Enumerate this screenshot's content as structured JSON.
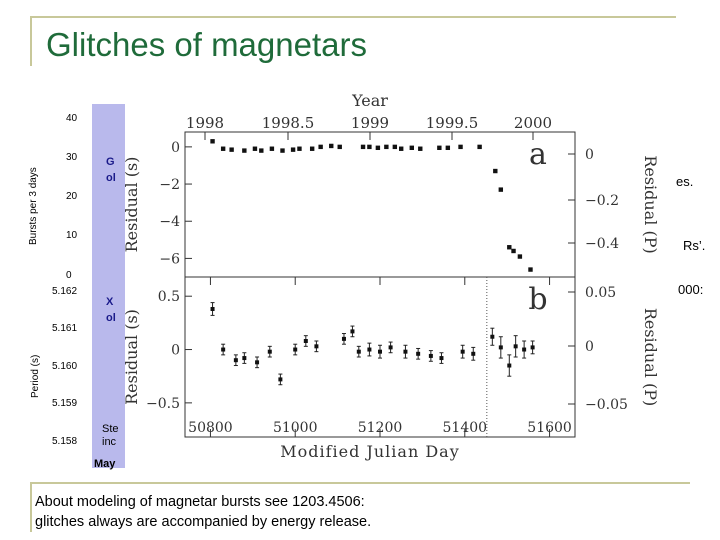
{
  "slide": {
    "title": "Glitches of magnetars",
    "caption_line1": "About modeling of magnetar bursts see 1203.4506:",
    "caption_line2": "glitches always are accompanied by energy release.",
    "right_fragments": [
      "es.",
      "Rs’.",
      "000:"
    ]
  },
  "background_plot": {
    "top_ylabel": "Bursts per 3 days",
    "top_ticks": [
      "40",
      "30",
      "20",
      "10",
      "0"
    ],
    "bottom_ylabel": "Period (s)",
    "bottom_ticks": [
      "5.162",
      "5.161",
      "5.160",
      "5.159",
      "5.158"
    ],
    "label_fragments": [
      "G",
      "ol",
      "X",
      "ol",
      "Ste",
      "inc",
      "May"
    ]
  },
  "colors": {
    "title": "#1f6b3a",
    "frame": "#c8c89a",
    "bg_panel": "#b9b9ec"
  },
  "chart_data": {
    "type": "scatter",
    "top_xlabel": "Year",
    "top_xticks": [
      "1998",
      "1998.5",
      "1999",
      "1999.5",
      "2000"
    ],
    "xlabel": "Modified Julian Day",
    "xticks": [
      "50800",
      "51000",
      "51200",
      "51400",
      "51600"
    ],
    "xlim": [
      50740,
      51660
    ],
    "glitch_mjd": 51452,
    "panels": [
      {
        "label": "a",
        "ylabel": "Residual (s)",
        "yticks": [
          "0",
          "−2",
          "−4",
          "−6"
        ],
        "ylim": [
          -7,
          0.8
        ],
        "right_ylabel": "Residual (P)",
        "right_yticks": [
          "0",
          "−0.2",
          "−0.4"
        ],
        "points": [
          [
            50805,
            0.3
          ],
          [
            50830,
            -0.1
          ],
          [
            50850,
            -0.15
          ],
          [
            50880,
            -0.2
          ],
          [
            50905,
            -0.1
          ],
          [
            50920,
            -0.2
          ],
          [
            50945,
            -0.1
          ],
          [
            50970,
            -0.2
          ],
          [
            50995,
            -0.15
          ],
          [
            51010,
            -0.1
          ],
          [
            51040,
            -0.1
          ],
          [
            51060,
            0.0
          ],
          [
            51085,
            0.05
          ],
          [
            51105,
            0.0
          ],
          [
            51160,
            0.0
          ],
          [
            51175,
            0.0
          ],
          [
            51195,
            -0.05
          ],
          [
            51215,
            0.0
          ],
          [
            51235,
            0.0
          ],
          [
            51250,
            -0.1
          ],
          [
            51275,
            -0.05
          ],
          [
            51295,
            -0.1
          ],
          [
            51340,
            -0.05
          ],
          [
            51360,
            -0.05
          ],
          [
            51390,
            0.0
          ],
          [
            51435,
            0.0
          ],
          [
            51472,
            -1.3
          ],
          [
            51485,
            -2.3
          ],
          [
            51505,
            -5.4
          ],
          [
            51515,
            -5.6
          ],
          [
            51530,
            -5.9
          ],
          [
            51555,
            -6.6
          ]
        ]
      },
      {
        "label": "b",
        "ylabel": "Residual (s)",
        "yticks": [
          "0.5",
          "0",
          "−0.5"
        ],
        "ylim": [
          -0.82,
          0.68
        ],
        "right_ylabel": "Residual (P)",
        "right_yticks": [
          "0.05",
          "0",
          "−0.05"
        ],
        "points": [
          [
            50805,
            0.38,
            0.06
          ],
          [
            50830,
            0.0,
            0.05
          ],
          [
            50860,
            -0.1,
            0.05
          ],
          [
            50880,
            -0.08,
            0.05
          ],
          [
            50910,
            -0.12,
            0.05
          ],
          [
            50940,
            -0.02,
            0.05
          ],
          [
            50965,
            -0.28,
            0.05
          ],
          [
            51000,
            0.0,
            0.05
          ],
          [
            51025,
            0.08,
            0.05
          ],
          [
            51050,
            0.03,
            0.05
          ],
          [
            51115,
            0.1,
            0.05
          ],
          [
            51135,
            0.17,
            0.05
          ],
          [
            51150,
            -0.02,
            0.05
          ],
          [
            51175,
            0.0,
            0.06
          ],
          [
            51200,
            -0.02,
            0.06
          ],
          [
            51225,
            0.02,
            0.05
          ],
          [
            51260,
            -0.02,
            0.06
          ],
          [
            51290,
            -0.04,
            0.05
          ],
          [
            51320,
            -0.06,
            0.05
          ],
          [
            51345,
            -0.08,
            0.05
          ],
          [
            51395,
            -0.02,
            0.06
          ],
          [
            51420,
            -0.04,
            0.06
          ],
          [
            51465,
            0.12,
            0.08
          ],
          [
            51485,
            0.02,
            0.1
          ],
          [
            51505,
            -0.15,
            0.1
          ],
          [
            51520,
            0.03,
            0.1
          ],
          [
            51540,
            0.0,
            0.08
          ],
          [
            51560,
            0.02,
            0.06
          ]
        ]
      }
    ]
  }
}
